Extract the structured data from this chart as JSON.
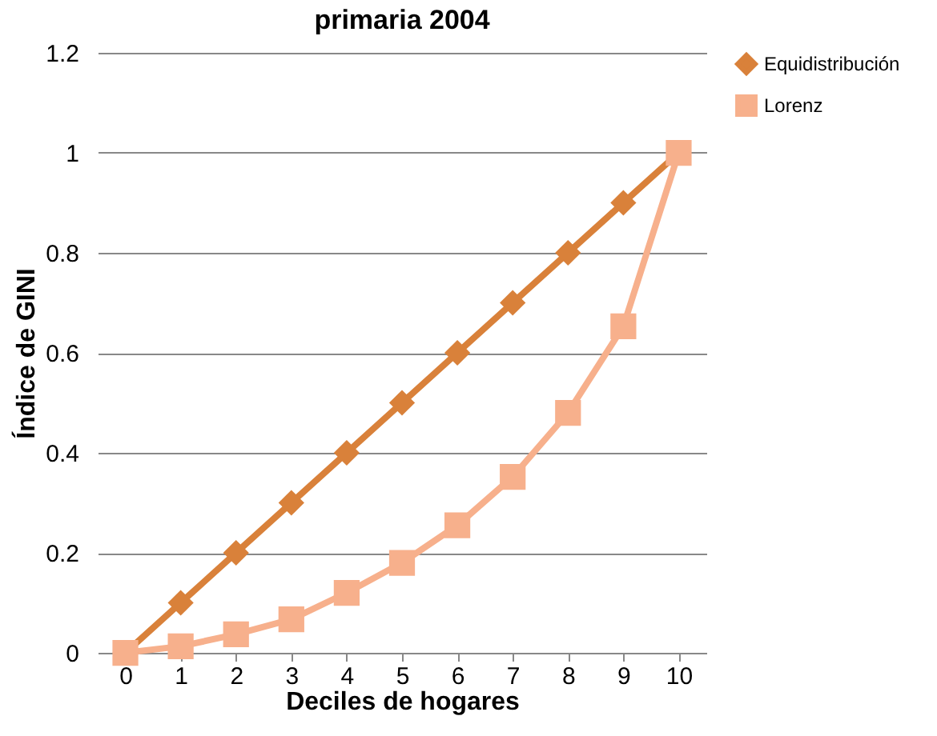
{
  "chart_data": {
    "type": "line",
    "title": "primaria 2004",
    "xlabel": "Deciles de hogares",
    "ylabel": "Índice de GINI",
    "categories": [
      "0",
      "1",
      "2",
      "3",
      "4",
      "5",
      "6",
      "7",
      "8",
      "9",
      "10"
    ],
    "series": [
      {
        "name": "Equidistribución",
        "color": "#d9813a",
        "marker": "diamond",
        "values": [
          0,
          0.1,
          0.2,
          0.3,
          0.4,
          0.5,
          0.6,
          0.7,
          0.8,
          0.9,
          1
        ]
      },
      {
        "name": "Lorenz",
        "color": "#f7b08c",
        "marker": "square",
        "values": [
          0,
          0.013,
          0.037,
          0.067,
          0.12,
          0.18,
          0.255,
          0.352,
          0.48,
          0.653,
          1
        ]
      }
    ],
    "ylim": [
      0,
      1.2
    ],
    "yticks": [
      0,
      0.2,
      0.4,
      0.6,
      0.8,
      1,
      1.2
    ],
    "grid": "y",
    "legend": "right",
    "line_style": "solid"
  }
}
